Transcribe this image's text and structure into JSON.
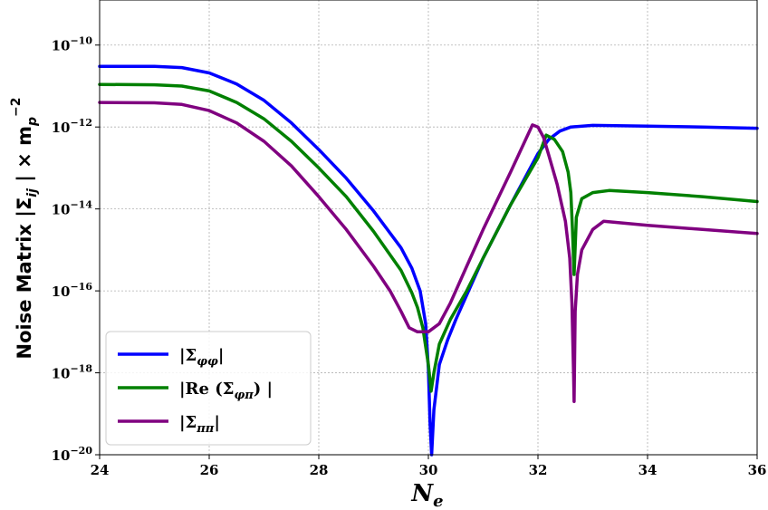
{
  "chart_data": {
    "type": "line",
    "title": "",
    "xlabel": "N_e",
    "ylabel": "Noise Matrix |Σ_ij| × m_p^-2",
    "xlim": [
      24,
      36
    ],
    "ylim_log10": [
      -20,
      -8.9
    ],
    "y_scale": "log",
    "grid": true,
    "legend_position": "lower-left",
    "x_ticks": [
      {
        "value": 24,
        "label": "24"
      },
      {
        "value": 26,
        "label": "26"
      },
      {
        "value": 28,
        "label": "28"
      },
      {
        "value": 30,
        "label": "30"
      },
      {
        "value": 32,
        "label": "32"
      },
      {
        "value": 34,
        "label": "34"
      },
      {
        "value": 36,
        "label": "36"
      }
    ],
    "y_ticks": [
      {
        "exp": -20,
        "base": "10",
        "sup": "−20"
      },
      {
        "exp": -18,
        "base": "10",
        "sup": "−18"
      },
      {
        "exp": -16,
        "base": "10",
        "sup": "−16"
      },
      {
        "exp": -14,
        "base": "10",
        "sup": "−14"
      },
      {
        "exp": -12,
        "base": "10",
        "sup": "−12"
      },
      {
        "exp": -10,
        "base": "10",
        "sup": "−10"
      }
    ],
    "series": [
      {
        "name": "|Σ_φφ|",
        "color": "#0000ff",
        "x": [
          24,
          25,
          25.5,
          26,
          26.5,
          27,
          27.5,
          28,
          28.5,
          29,
          29.5,
          29.7,
          29.85,
          29.95,
          30.0,
          30.03,
          30.06,
          30.1,
          30.2,
          30.35,
          30.5,
          31.0,
          31.5,
          32.0,
          32.2,
          32.4,
          32.6,
          33,
          34,
          35,
          36
        ],
        "log10_y": [
          -10.52,
          -10.52,
          -10.55,
          -10.68,
          -10.95,
          -11.35,
          -11.9,
          -12.55,
          -13.25,
          -14.05,
          -14.95,
          -15.45,
          -16.0,
          -16.8,
          -17.9,
          -19.2,
          -20.0,
          -18.9,
          -17.8,
          -17.2,
          -16.7,
          -15.2,
          -13.9,
          -12.65,
          -12.3,
          -12.1,
          -12.0,
          -11.96,
          -11.98,
          -12.0,
          -12.03
        ]
      },
      {
        "name": "|Re (Σ_φπ) |",
        "color": "#008000",
        "x": [
          24,
          25,
          25.5,
          26,
          26.5,
          27,
          27.5,
          28,
          28.5,
          29,
          29.5,
          29.7,
          29.8,
          29.9,
          30.0,
          30.05,
          30.1,
          30.2,
          30.4,
          30.7,
          31.0,
          31.5,
          32.0,
          32.15,
          32.3,
          32.45,
          32.55,
          32.6,
          32.63,
          32.66,
          32.7,
          32.8,
          33.0,
          33.3,
          34,
          35,
          36
        ],
        "log10_y": [
          -10.96,
          -10.97,
          -11.0,
          -11.12,
          -11.4,
          -11.8,
          -12.35,
          -13.0,
          -13.7,
          -14.55,
          -15.5,
          -16.05,
          -16.4,
          -16.9,
          -17.8,
          -18.45,
          -18.0,
          -17.3,
          -16.7,
          -16.0,
          -15.2,
          -13.9,
          -12.75,
          -12.2,
          -12.3,
          -12.6,
          -13.1,
          -13.6,
          -14.5,
          -15.6,
          -14.2,
          -13.75,
          -13.6,
          -13.55,
          -13.6,
          -13.7,
          -13.82
        ]
      },
      {
        "name": "|Σ_ππ|",
        "color": "#800080",
        "x": [
          24,
          25,
          25.5,
          26,
          26.5,
          27,
          27.5,
          28,
          28.5,
          29,
          29.3,
          29.5,
          29.65,
          29.8,
          30.0,
          30.2,
          30.4,
          30.7,
          31.0,
          31.5,
          31.9,
          32.0,
          32.1,
          32.2,
          32.35,
          32.5,
          32.58,
          32.62,
          32.65,
          32.66,
          32.68,
          32.72,
          32.8,
          33.0,
          33.2,
          34,
          35,
          36
        ],
        "log10_y": [
          -11.4,
          -11.41,
          -11.45,
          -11.6,
          -11.9,
          -12.35,
          -12.95,
          -13.7,
          -14.5,
          -15.4,
          -16.0,
          -16.5,
          -16.9,
          -17.0,
          -17.0,
          -16.8,
          -16.3,
          -15.4,
          -14.5,
          -13.1,
          -11.95,
          -12.0,
          -12.25,
          -12.7,
          -13.4,
          -14.3,
          -15.2,
          -16.3,
          -18.0,
          -18.7,
          -16.5,
          -15.6,
          -15.0,
          -14.5,
          -14.3,
          -14.4,
          -14.5,
          -14.6
        ]
      }
    ],
    "legend": [
      {
        "label": "|Σ",
        "sub": "φφ",
        "tail": "|",
        "color": "#0000ff"
      },
      {
        "label": "|Re (Σ",
        "sub": "φπ",
        "tail": ") |",
        "color": "#008000"
      },
      {
        "label": "|Σ",
        "sub": "ππ",
        "tail": "|",
        "color": "#800080"
      }
    ]
  }
}
